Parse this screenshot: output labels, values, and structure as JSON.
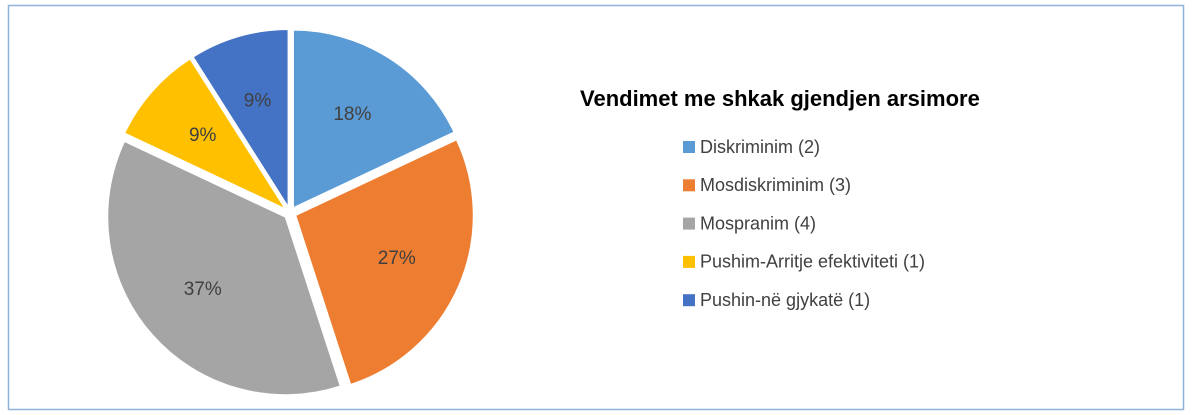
{
  "chart_data": {
    "type": "pie",
    "title": "Vendimet me shkak gjendjen arsimore",
    "categories": [
      "Diskriminim (2)",
      "Mosdiskriminim (3)",
      "Mospranim (4)",
      "Pushim-Arritje efektiviteti (1)",
      "Pushin-në gjykatë (1)"
    ],
    "values": [
      18,
      27,
      37,
      9,
      9
    ],
    "value_labels": [
      "18%",
      "27%",
      "37%",
      "9%",
      "9%"
    ],
    "colors": [
      "#5b9bd5",
      "#ed7d31",
      "#a5a5a5",
      "#ffc000",
      "#4472c4"
    ],
    "legend": "right"
  }
}
